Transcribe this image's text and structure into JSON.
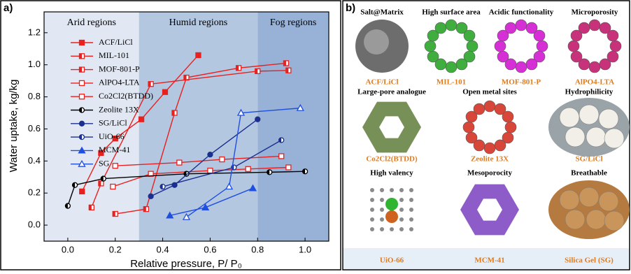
{
  "chart_data": {
    "type": "line",
    "panel_label": "a)",
    "x_label": "Relative pressure, P/ P₀",
    "y_label": "Water uptake, kg/kg",
    "xlim": [
      -0.1,
      1.1
    ],
    "xticks": [
      {
        "value": 0,
        "label": "0.0"
      },
      0.2,
      0.4,
      0.6,
      0.8,
      {
        "value": 1,
        "label": "1.0"
      }
    ],
    "ylim": [
      -0.1,
      1.33
    ],
    "yticks": [
      {
        "value": 0,
        "label": "0.0"
      },
      0.2,
      0.4,
      0.6,
      0.8,
      {
        "value": 1,
        "label": "1.0"
      },
      1.2
    ],
    "legend": "upper left",
    "regions": [
      {
        "label": "Arid regions",
        "xlim": [
          -0.1,
          0.3
        ],
        "color": "#e1e8f3"
      },
      {
        "label": "Humid regions",
        "xlim": [
          0.3,
          0.8
        ],
        "color": "#b4c7e1"
      },
      {
        "label": "Fog regions",
        "xlim": [
          0.8,
          1.1
        ],
        "color": "#97b2d6"
      }
    ],
    "series": [
      {
        "name": "ACF/LiCl",
        "color": "#e8201f",
        "marker": "square",
        "fill": "full",
        "x": [
          0.06,
          0.14,
          0.2,
          0.31,
          0.41,
          0.55
        ],
        "values": [
          0.21,
          0.45,
          0.54,
          0.66,
          0.83,
          1.06
        ]
      },
      {
        "name": "MIL-101",
        "color": "#e8201f",
        "marker": "square",
        "fill": "half",
        "x": [
          0.2,
          0.33,
          0.45,
          0.5,
          0.72,
          0.92
        ],
        "values": [
          0.07,
          0.1,
          0.7,
          0.92,
          0.98,
          1.01
        ]
      },
      {
        "name": "MOF-801-P",
        "color": "#e8201f",
        "marker": "square",
        "fill": "half",
        "x": [
          0.1,
          0.14,
          0.35,
          0.8,
          0.93
        ],
        "values": [
          0.11,
          0.26,
          0.88,
          0.96,
          0.965
        ]
      },
      {
        "name": "AlPO4-LTA",
        "color": "#e8201f",
        "marker": "square",
        "fill": "none",
        "x": [
          0.19,
          0.35,
          0.6,
          0.76,
          0.93
        ],
        "values": [
          0.24,
          0.32,
          0.34,
          0.35,
          0.36
        ]
      },
      {
        "name": "Co2Cl2(BTDD)",
        "color": "#e8201f",
        "marker": "square",
        "fill": "none",
        "x": [
          0.2,
          0.47,
          0.65,
          0.9
        ],
        "values": [
          0.37,
          0.39,
          0.41,
          0.43
        ]
      },
      {
        "name": "Zeolite 13X",
        "color": "#000000",
        "marker": "circle",
        "fill": "half",
        "x": [
          0,
          0.03,
          0.15,
          0.5,
          0.85,
          1.0
        ],
        "values": [
          0.12,
          0.25,
          0.29,
          0.32,
          0.33,
          0.335
        ]
      },
      {
        "name": "SG/LiCl",
        "color": "#1a2f8f",
        "marker": "circle",
        "fill": "full",
        "x": [
          0.35,
          0.45,
          0.6,
          0.8
        ],
        "values": [
          0.18,
          0.25,
          0.44,
          0.66
        ]
      },
      {
        "name": "UiO-66",
        "color": "#1a2f8f",
        "marker": "circle",
        "fill": "half",
        "x": [
          0.4,
          0.7,
          0.9
        ],
        "values": [
          0.24,
          0.36,
          0.53
        ]
      },
      {
        "name": "MCM-41",
        "color": "#1f4fe0",
        "marker": "triangle",
        "fill": "full",
        "x": [
          0.43,
          0.58,
          0.78
        ],
        "values": [
          0.06,
          0.11,
          0.23
        ]
      },
      {
        "name": "SG",
        "color": "#1f4fe0",
        "marker": "triangle",
        "fill": "none",
        "x": [
          0.5,
          0.68,
          0.73,
          0.98
        ],
        "values": [
          0.05,
          0.24,
          0.7,
          0.73
        ]
      }
    ]
  },
  "panel_b": {
    "panel_label": "b)",
    "items": [
      {
        "feature": "Salt@Matrix",
        "name": "ACF/LiCl"
      },
      {
        "feature": "High surface area",
        "name": "MIL-101"
      },
      {
        "feature": "Acidic functionality",
        "name": "MOF-801-P"
      },
      {
        "feature": "Microporosity",
        "name": "AlPO4-LTA"
      },
      {
        "feature": "Large-pore analogue",
        "name": "Co2Cl2(BTDD)"
      },
      {
        "feature": "Open metal sites",
        "name": "Zeolite 13X"
      },
      {
        "feature": "Hydrophilicity",
        "name": "SG/LiCl"
      },
      {
        "feature": "High valency",
        "name": "UiO-66"
      },
      {
        "feature": "Mesoporocity",
        "name": "MCM-41"
      },
      {
        "feature": "Breathable",
        "name": "Silica Gel (SG)"
      }
    ]
  }
}
